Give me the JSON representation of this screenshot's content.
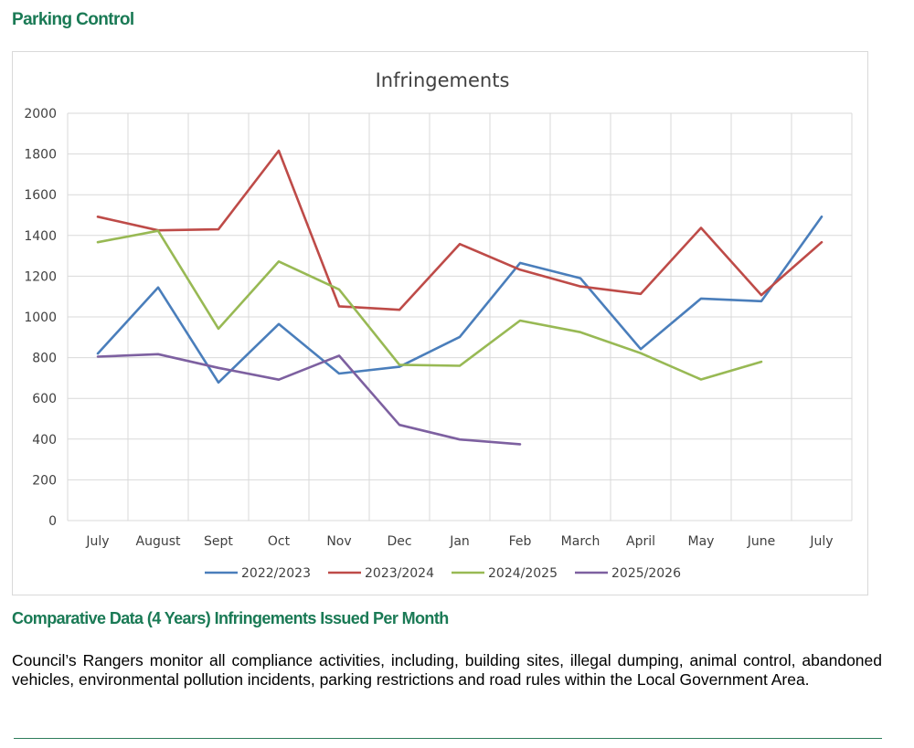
{
  "heading": "Parking Control",
  "caption": "Comparative Data (4 Years) Infringements Issued Per Month",
  "body_text": "Council’s Rangers monitor all compliance activities, including, building sites, illegal dumping, animal control, abandoned vehicles, environmental pollution incidents, parking restrictions and road rules within the Local Government Area.",
  "chart_data": {
    "type": "line",
    "title": "Infringements",
    "xlabel": "",
    "ylabel": "",
    "ylim": [
      0,
      2000
    ],
    "yticks": [
      0,
      200,
      400,
      600,
      800,
      1000,
      1200,
      1400,
      1600,
      1800,
      2000
    ],
    "grid": true,
    "legend_position": "bottom",
    "categories": [
      "July",
      "August",
      "Sept",
      "Oct",
      "Nov",
      "Dec",
      "Jan",
      "Feb",
      "March",
      "April",
      "May",
      "June",
      "July"
    ],
    "series": [
      {
        "name": "2022/2023",
        "color": "#4a7ebb",
        "values": [
          820,
          1145,
          678,
          965,
          722,
          755,
          902,
          1265,
          1190,
          842,
          1090,
          1077,
          1492
        ]
      },
      {
        "name": "2023/2024",
        "color": "#be4b48",
        "values": [
          1492,
          1425,
          1430,
          1816,
          1052,
          1035,
          1358,
          1232,
          1150,
          1113,
          1437,
          1107,
          1367
        ]
      },
      {
        "name": "2024/2025",
        "color": "#98b954",
        "values": [
          1367,
          1423,
          942,
          1272,
          1135,
          765,
          760,
          982,
          925,
          822,
          693,
          780,
          null
        ]
      },
      {
        "name": "2025/2026",
        "color": "#7d60a0",
        "values": [
          805,
          817,
          750,
          692,
          810,
          470,
          398,
          375,
          null,
          null,
          null,
          null,
          null
        ]
      }
    ]
  }
}
